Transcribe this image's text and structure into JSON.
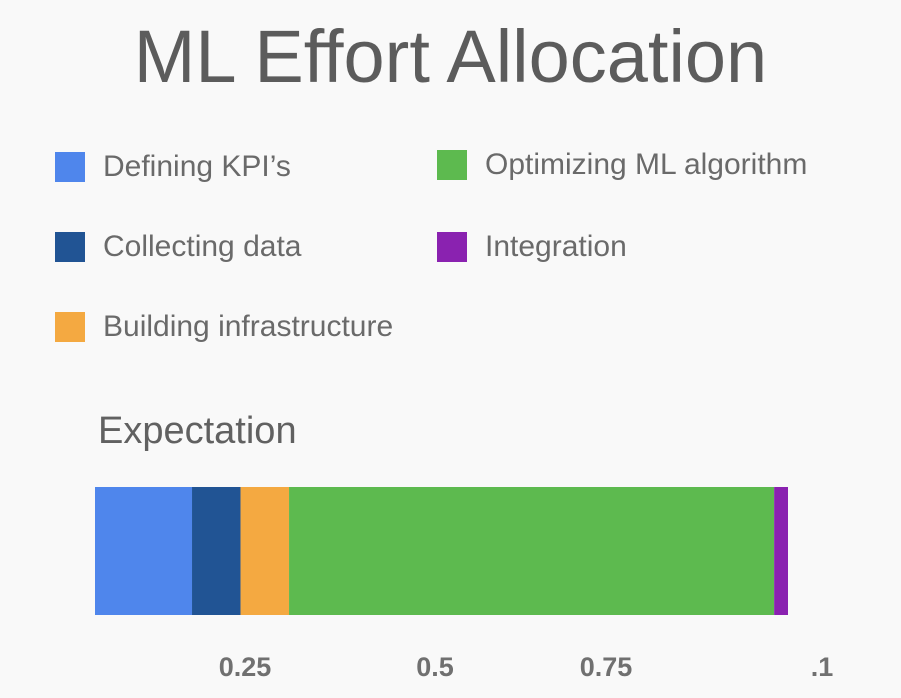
{
  "chart_data": {
    "type": "bar",
    "orientation": "horizontal-stacked",
    "title": "ML Effort Allocation",
    "categories": [
      "Expectation"
    ],
    "series": [
      {
        "name": "Defining KPI’s",
        "values": [
          0.14
        ],
        "color": "#4f86ec"
      },
      {
        "name": "Collecting data",
        "values": [
          0.07
        ],
        "color": "#215494"
      },
      {
        "name": "Building infrastructure",
        "values": [
          0.07
        ],
        "color": "#f4a941"
      },
      {
        "name": "Optimizing ML algorithm",
        "values": [
          0.7
        ],
        "color": "#5dba4f"
      },
      {
        "name": "Integration",
        "values": [
          0.02
        ],
        "color": "#8a22b0"
      }
    ],
    "x_tick_labels": [
      "0.25",
      "0.5",
      "0.75",
      ".1"
    ],
    "xlim": [
      0,
      1
    ],
    "legend_placement": "top",
    "grid": false
  }
}
